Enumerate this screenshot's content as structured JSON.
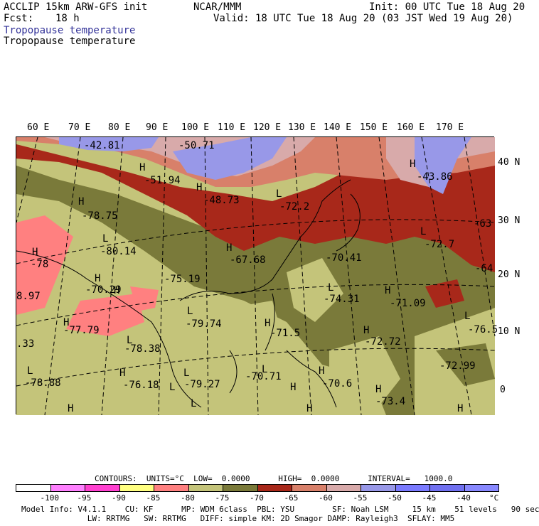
{
  "header": {
    "model": "ACCLIP 15km ARW-GFS init",
    "fcst_label": "Fcst:",
    "fcst_value": "18 h",
    "center": "NCAR/MMM",
    "init": "Init: 00 UTC Tue 18 Aug 20",
    "valid": "Valid: 18 UTC Tue 18 Aug 20 (03 JST Wed 19 Aug 20)",
    "field_colored": "Tropopause temperature",
    "field_black": "Tropopause temperature",
    "field_color": "#333399"
  },
  "map": {
    "lon_labels": [
      "60 E",
      "70 E",
      "80 E",
      "90 E",
      "100 E",
      "110 E",
      "120 E",
      "130 E",
      "140 E",
      "150 E",
      "160 E",
      "170 E"
    ],
    "lat_labels": [
      "40 N",
      "30 N",
      "20 N",
      "10 N",
      "0"
    ],
    "markers": [
      {
        "t": "-42.81"
      },
      {
        "t": "-50.71"
      },
      {
        "t": "H"
      },
      {
        "t": "-51.94"
      },
      {
        "t": "H"
      },
      {
        "t": "-48.73"
      },
      {
        "t": "L"
      },
      {
        "t": "-72.2"
      },
      {
        "t": "H"
      },
      {
        "t": "-43.86"
      },
      {
        "t": "H"
      },
      {
        "t": "-78.75"
      },
      {
        "t": "L"
      },
      {
        "t": "-80.14"
      },
      {
        "t": "H"
      },
      {
        "t": "-67.68"
      },
      {
        "t": "-70.41"
      },
      {
        "t": "L"
      },
      {
        "t": "-72.7"
      },
      {
        "t": "-63"
      },
      {
        "t": "-64"
      },
      {
        "t": "H"
      },
      {
        "t": "-78"
      },
      {
        "t": "H"
      },
      {
        "t": "-75.19"
      },
      {
        "t": "H"
      },
      {
        "t": "-70.29"
      },
      {
        "t": "8.97"
      },
      {
        "t": "L"
      },
      {
        "t": "-74.31"
      },
      {
        "t": "H"
      },
      {
        "t": "-71.09"
      },
      {
        "t": "L"
      },
      {
        "t": "-79.74"
      },
      {
        "t": "H"
      },
      {
        "t": "-77.79"
      },
      {
        "t": "H"
      },
      {
        "t": "-71.5"
      },
      {
        "t": "H"
      },
      {
        "t": "-72.72"
      },
      {
        "t": "L"
      },
      {
        "t": "-76.5"
      },
      {
        "t": ".33"
      },
      {
        "t": "L"
      },
      {
        "t": "-78.38"
      },
      {
        "t": "-72.99"
      },
      {
        "t": "L"
      },
      {
        "t": "-78.88"
      },
      {
        "t": "H"
      },
      {
        "t": "-76.18"
      },
      {
        "t": "L"
      },
      {
        "t": "-79.27"
      },
      {
        "t": "L"
      },
      {
        "t": "-70.71"
      },
      {
        "t": "H"
      },
      {
        "t": "-70.6"
      },
      {
        "t": "H"
      },
      {
        "t": "-73.4"
      },
      {
        "t": "H"
      },
      {
        "t": "L"
      },
      {
        "t": "H"
      },
      {
        "t": "H"
      },
      {
        "t": "L"
      },
      {
        "t": "H"
      }
    ]
  },
  "contours": {
    "text": "CONTOURS:  UNITS=°C  LOW=  0.0000      HIGH=  0.0000      INTERVAL=   1000.0"
  },
  "legend": {
    "colors": [
      "#ffffff",
      "#ff80ff",
      "#ff40d0",
      "#ffff80",
      "#ff8080",
      "#c4c47a",
      "#7a7a3a",
      "#a8281a",
      "#d8806a",
      "#d8aaaa",
      "#9898e8",
      "#7a7aff",
      "#7070f0",
      "#8888ff"
    ],
    "labels": [
      "-100",
      "-95",
      "-90",
      "-85",
      "-80",
      "-75",
      "-70",
      "-65",
      "-60",
      "-55",
      "-50",
      "-45",
      "-40",
      "°C"
    ]
  },
  "footer": {
    "line1": "Model Info: V4.1.1    CU: KF      MP: WDM 6class  PBL: YSU        SF: Noah LSM     15 km    51 levels   90 sec",
    "line2": "              LW: RRTMG   SW: RRTMG   DIFF: simple KM: 2D Smagor DAMP: Rayleigh3  SFLAY: MM5"
  }
}
